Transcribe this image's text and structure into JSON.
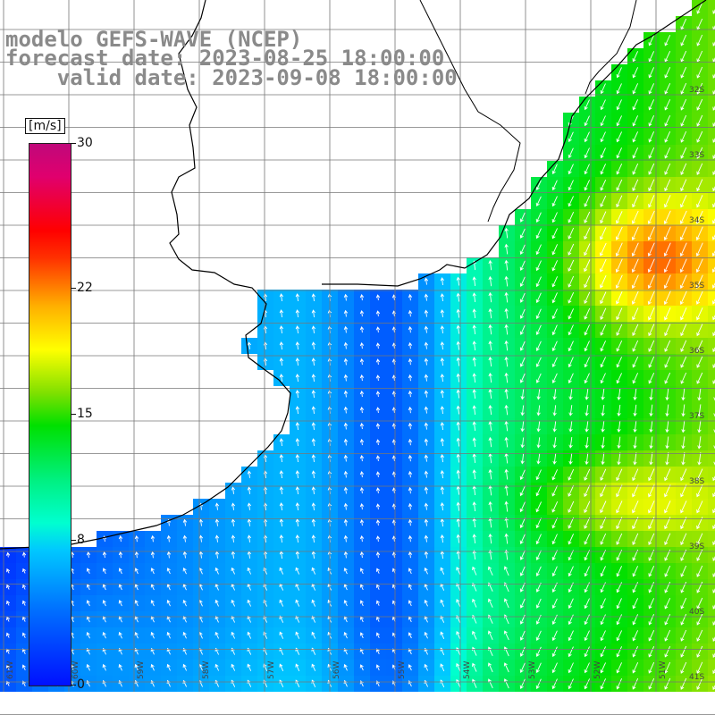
{
  "title_lines": [
    "modelo GEFS-WAVE (NCEP)",
    "forecast date: 2023-08-25 18:00:00",
    "    valid date: 2023-09-08 18:00:00"
  ],
  "colorbar": {
    "unit": "[m/s]",
    "ticks": [
      {
        "label": "30",
        "value": 30
      },
      {
        "label": "22",
        "value": 22
      },
      {
        "label": "15",
        "value": 15
      },
      {
        "label": "8",
        "value": 8
      },
      {
        "label": "0",
        "value": 0
      }
    ]
  },
  "lat_labels": [
    "32S",
    "33S",
    "34S",
    "35S",
    "36S",
    "37S",
    "38S",
    "39S",
    "40S",
    "41S"
  ],
  "lon_labels": [
    "61W",
    "60W",
    "59W",
    "58W",
    "57W",
    "56W",
    "55W",
    "54W",
    "53W",
    "52W",
    "51W"
  ],
  "colors": {
    "land": "#ffffff",
    "grid": "#777777",
    "coast": "#000000",
    "arrows": "#ffffff"
  }
}
